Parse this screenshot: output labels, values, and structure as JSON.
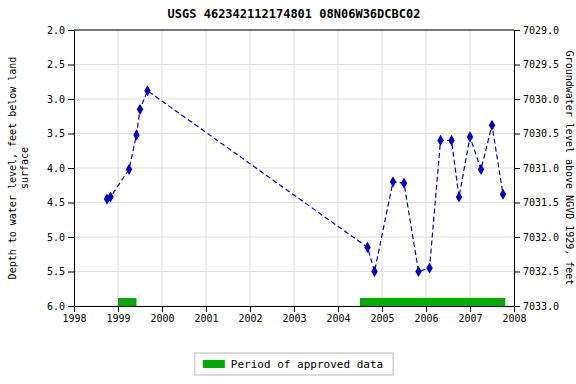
{
  "chart_data": {
    "type": "line",
    "title": "USGS 462342112174801 08N06W36DCBC02",
    "y_label": "Depth to water level, feet below land\nsurface",
    "y2_label": "Groundwater level above NGVD 1929, feet",
    "x": [
      1998.75,
      1998.83,
      1999.25,
      1999.42,
      1999.5,
      1999.67,
      2004.67,
      2004.83,
      2005.25,
      2005.5,
      2005.83,
      2006.08,
      2006.33,
      2006.58,
      2006.75,
      2007.0,
      2007.25,
      2007.5,
      2007.75
    ],
    "series": [
      {
        "values": [
          4.45,
          4.42,
          4.02,
          3.52,
          3.15,
          2.88,
          5.15,
          5.5,
          4.2,
          4.22,
          5.5,
          5.45,
          3.6,
          3.6,
          4.42,
          3.55,
          4.02,
          3.38,
          4.38
        ],
        "color": "#0000CC",
        "marker": "diamond",
        "line_style": "dashed"
      }
    ],
    "approved_periods": {
      "name": "Period of approved data",
      "color": "#00AA00",
      "spans": [
        {
          "x": 1999.0,
          "width": 0.42
        },
        {
          "x": 2004.5,
          "width": 3.3
        }
      ]
    },
    "xlim": [
      1998,
      2008
    ],
    "xticks": [
      1998,
      1999,
      2000,
      2001,
      2002,
      2003,
      2004,
      2005,
      2006,
      2007,
      2008
    ],
    "ylim": [
      6.0,
      2.0
    ],
    "yticks": [
      {
        "value": 2.0,
        "label": "2.0"
      },
      2.5,
      {
        "value": 3.0,
        "label": "3.0"
      },
      3.5,
      {
        "value": 4.0,
        "label": "4.0"
      },
      4.5,
      {
        "value": 5.0,
        "label": "5.0"
      },
      5.5,
      {
        "value": 6.0,
        "label": "6.0"
      }
    ],
    "y2lim": [
      7033.0,
      7029.0
    ],
    "y2ticks": [
      {
        "value": 7029.0,
        "label": "7029.0"
      },
      7029.5,
      {
        "value": 7030.0,
        "label": "7030.0"
      },
      7030.5,
      {
        "value": 7031.0,
        "label": "7031.0"
      },
      7031.5,
      {
        "value": 7032.0,
        "label": "7032.0"
      },
      7032.5,
      {
        "value": 7033.0,
        "label": "7033.0"
      }
    ],
    "grid": true,
    "legend": "bottom"
  }
}
